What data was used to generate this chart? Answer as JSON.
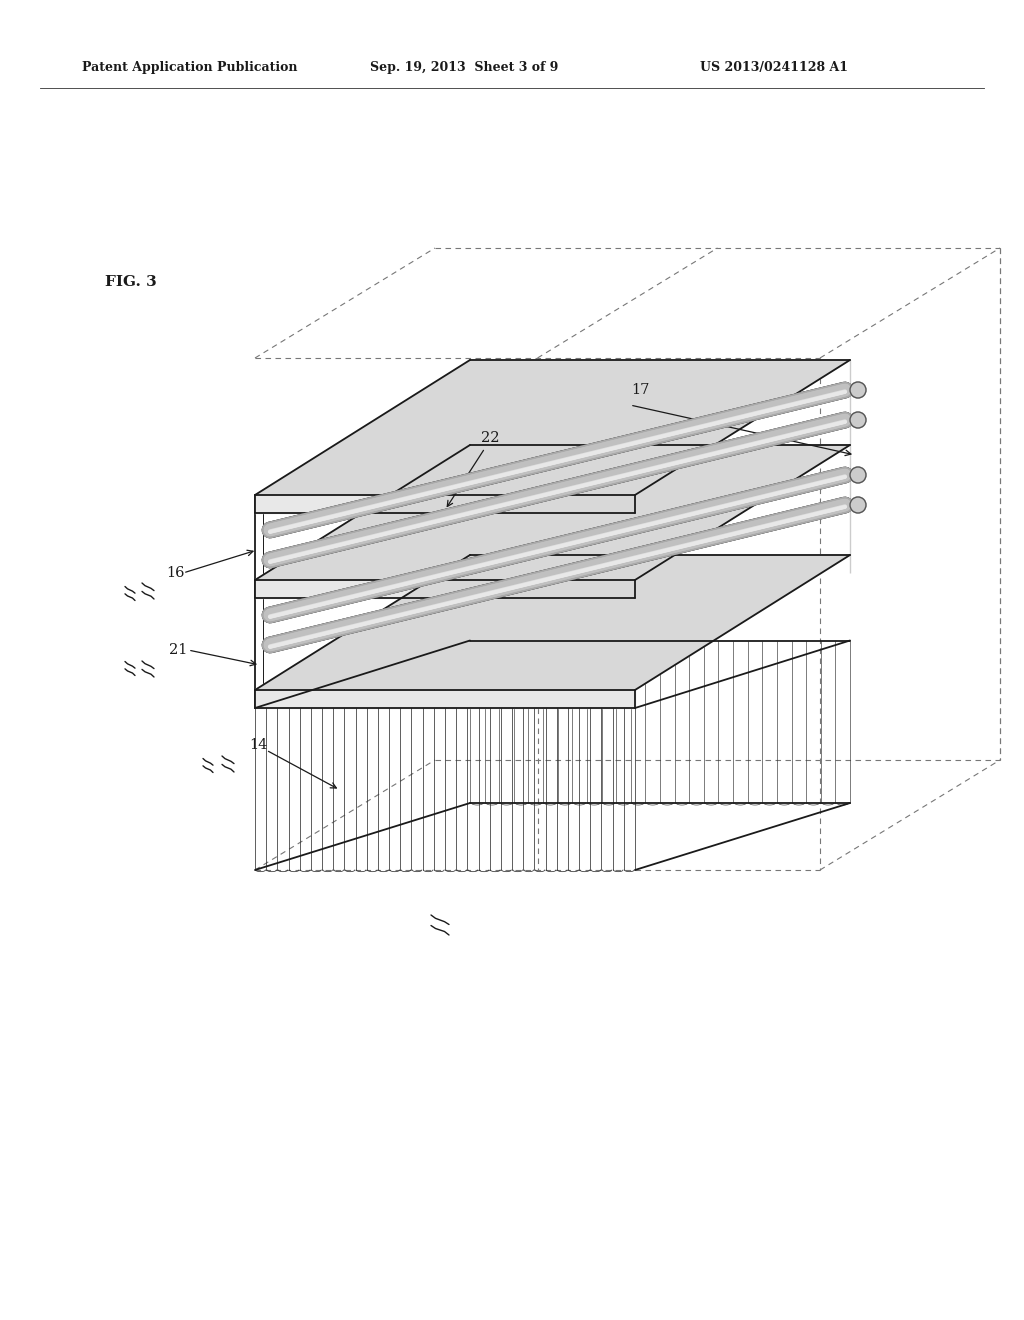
{
  "bg_color": "#ffffff",
  "header_left": "Patent Application Publication",
  "header_center": "Sep. 19, 2013  Sheet 3 of 9",
  "header_right": "US 2013/0241128 A1",
  "fig_label": "FIG. 3",
  "line_color": "#1a1a1a",
  "dashed_color": "#777777",
  "rod_color_light": "#cccccc",
  "rod_color_mid": "#999999",
  "rod_color_dark": "#666666",
  "fin_color": "#333333",
  "lw_main": 1.3,
  "lw_thin": 0.7,
  "lw_dash": 0.8,
  "n_fins": 32,
  "n_rods": 4,
  "rod_lw": 9
}
